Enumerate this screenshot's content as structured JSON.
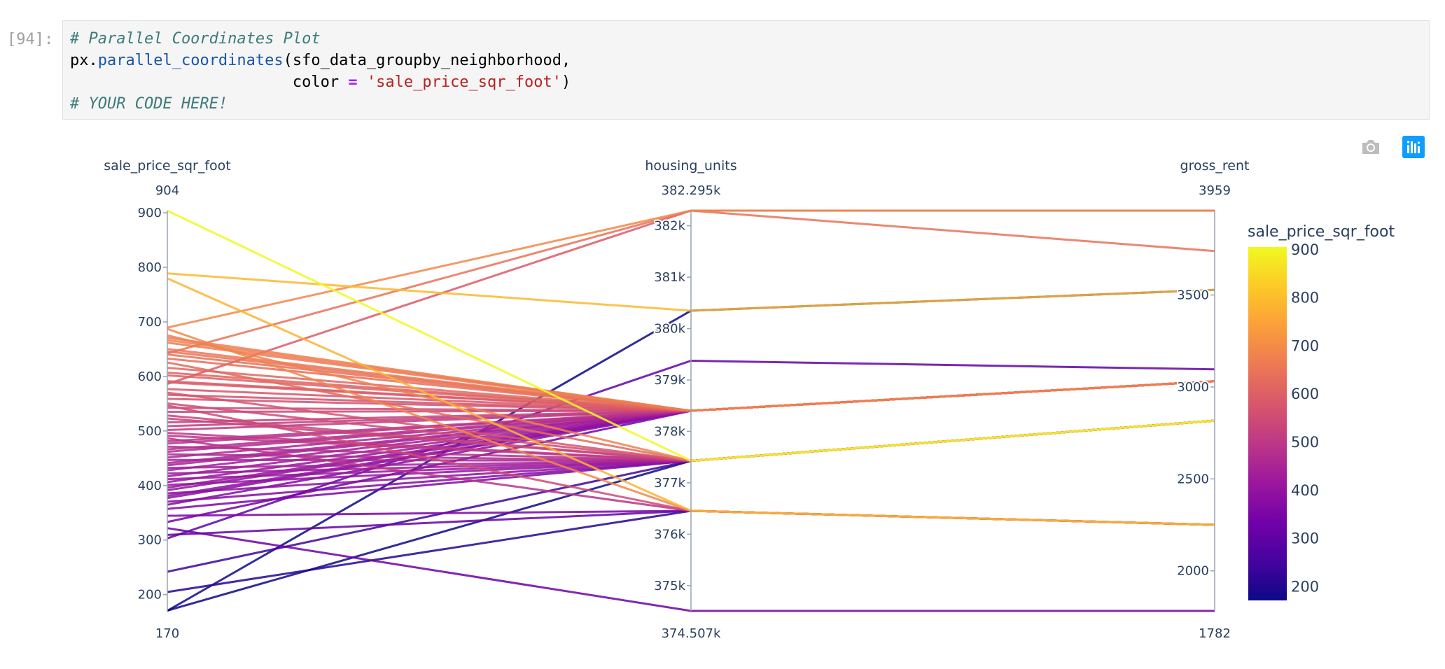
{
  "cell": {
    "prompt": "[94]:",
    "lines": [
      "# Parallel Coordinates Plot",
      "px.parallel_coordinates(sfo_data_groupby_neighborhood,",
      "                        color = 'sale_price_sqr_foot')",
      "# YOUR CODE HERE!"
    ],
    "tokens": {
      "l0": "# Parallel Coordinates Plot",
      "l1_a": "px.",
      "l1_b": "parallel_coordinates",
      "l1_c": "(sfo_data_groupby_neighborhood,",
      "l2_a": "                        color ",
      "l2_b": "=",
      "l2_c": " ",
      "l2_d": "'sale_price_sqr_foot'",
      "l2_e": ")",
      "l3": "# YOUR CODE HERE!"
    }
  },
  "toolbar": {
    "icons": [
      "camera-icon",
      "plotly-logo-icon"
    ],
    "colors": {
      "camera": "#bbbbbb",
      "plotly": "#119dff"
    }
  },
  "chart_data": {
    "type": "parallel_coordinates",
    "dimensions": [
      {
        "name": "sale_price_sqr_foot",
        "range_label_top": "904",
        "range_label_bottom": "170",
        "range": [
          170,
          904
        ],
        "ticks": [
          200,
          300,
          400,
          500,
          600,
          700,
          800,
          900
        ],
        "tick_labels": [
          "200",
          "300",
          "400",
          "500",
          "600",
          "700",
          "800",
          "900"
        ]
      },
      {
        "name": "housing_units",
        "range_label_top": "382.295k",
        "range_label_bottom": "374.507k",
        "range": [
          374507,
          382295
        ],
        "ticks": [
          375000,
          376000,
          377000,
          378000,
          379000,
          380000,
          381000,
          382000
        ],
        "tick_labels": [
          "375k",
          "376k",
          "377k",
          "378k",
          "379k",
          "380k",
          "381k",
          "382k"
        ]
      },
      {
        "name": "gross_rent",
        "range_label_top": "3959",
        "range_label_bottom": "1782",
        "range": [
          1782,
          3959
        ],
        "ticks": [
          2000,
          2500,
          3000,
          3500
        ],
        "tick_labels": [
          "2000",
          "2500",
          "3000",
          "3500"
        ]
      }
    ],
    "rows": [
      [
        903.99,
        377427,
        2817
      ],
      [
        788.84,
        380348,
        3528
      ],
      [
        779.81,
        376454,
        2250
      ],
      [
        689.56,
        382295,
        3959
      ],
      [
        687.09,
        376454,
        2250
      ],
      [
        675.35,
        377427,
        2817
      ],
      [
        670.93,
        378401,
        3031
      ],
      [
        666.6,
        378401,
        3031
      ],
      [
        662.01,
        378401,
        3031
      ],
      [
        650.12,
        378401,
        3031
      ],
      [
        645.63,
        378401,
        3031
      ],
      [
        642.25,
        382295,
        3739
      ],
      [
        640.22,
        378401,
        3031
      ],
      [
        632.74,
        378401,
        3031
      ],
      [
        625.55,
        377427,
        2817
      ],
      [
        615.82,
        378401,
        3031
      ],
      [
        606.97,
        378401,
        3031
      ],
      [
        601.93,
        378401,
        3031
      ],
      [
        591.4,
        378401,
        3031
      ],
      [
        589.04,
        378401,
        3031
      ],
      [
        586.11,
        382295,
        3959
      ],
      [
        576.75,
        378401,
        3031
      ],
      [
        570.27,
        377427,
        2817
      ],
      [
        566.19,
        378401,
        3031
      ],
      [
        558.94,
        378401,
        3031
      ],
      [
        550.51,
        377427,
        2817
      ],
      [
        546.69,
        376454,
        2250
      ],
      [
        542.44,
        378401,
        3031
      ],
      [
        535.04,
        378401,
        3031
      ],
      [
        528.32,
        377427,
        2817
      ],
      [
        522.92,
        377427,
        2817
      ],
      [
        515.67,
        378401,
        3031
      ],
      [
        508.71,
        378401,
        3031
      ],
      [
        501.67,
        378401,
        3031
      ],
      [
        496.51,
        377427,
        2817
      ],
      [
        491.25,
        377427,
        2817
      ],
      [
        486.43,
        376454,
        2250
      ],
      [
        481.2,
        378401,
        3031
      ],
      [
        476.81,
        378401,
        3031
      ],
      [
        471.27,
        377427,
        2817
      ],
      [
        466.32,
        378401,
        3031
      ],
      [
        461.75,
        378401,
        3031
      ],
      [
        457.12,
        377427,
        2817
      ],
      [
        451.24,
        378401,
        3031
      ],
      [
        446.89,
        377427,
        2817
      ],
      [
        441.13,
        378401,
        3031
      ],
      [
        437.02,
        378401,
        3031
      ],
      [
        432.35,
        377427,
        2817
      ],
      [
        427.84,
        378401,
        3031
      ],
      [
        421.96,
        377427,
        2817
      ],
      [
        416.77,
        378401,
        3031
      ],
      [
        411.62,
        377427,
        2817
      ],
      [
        406.28,
        378401,
        3031
      ],
      [
        401.09,
        377427,
        2817
      ],
      [
        396.1,
        378401,
        3031
      ],
      [
        391.36,
        378401,
        3031
      ],
      [
        385.54,
        377427,
        2817
      ],
      [
        381.02,
        378401,
        3031
      ],
      [
        376.94,
        378401,
        3031
      ],
      [
        370.2,
        377427,
        2817
      ],
      [
        364.62,
        378401,
        3031
      ],
      [
        357.03,
        377427,
        2817
      ],
      [
        344.49,
        376454,
        2250
      ],
      [
        333.12,
        378401,
        3031
      ],
      [
        321.84,
        374507,
        1782
      ],
      [
        309.31,
        376454,
        2250
      ],
      [
        303.08,
        379374,
        3096
      ],
      [
        241.8,
        377427,
        2817
      ],
      [
        204.59,
        376454,
        2250
      ],
      [
        170.29,
        380348,
        3528
      ],
      [
        170.62,
        377427,
        2817
      ]
    ],
    "color": "sale_price_sqr_foot",
    "colorscale": "Plasma",
    "colorbar": {
      "title": "sale_price_sqr_foot",
      "ticks": [
        200,
        300,
        400,
        500,
        600,
        700,
        800,
        900
      ],
      "tick_labels": [
        "200",
        "300",
        "400",
        "500",
        "600",
        "700",
        "800",
        "900"
      ]
    }
  }
}
